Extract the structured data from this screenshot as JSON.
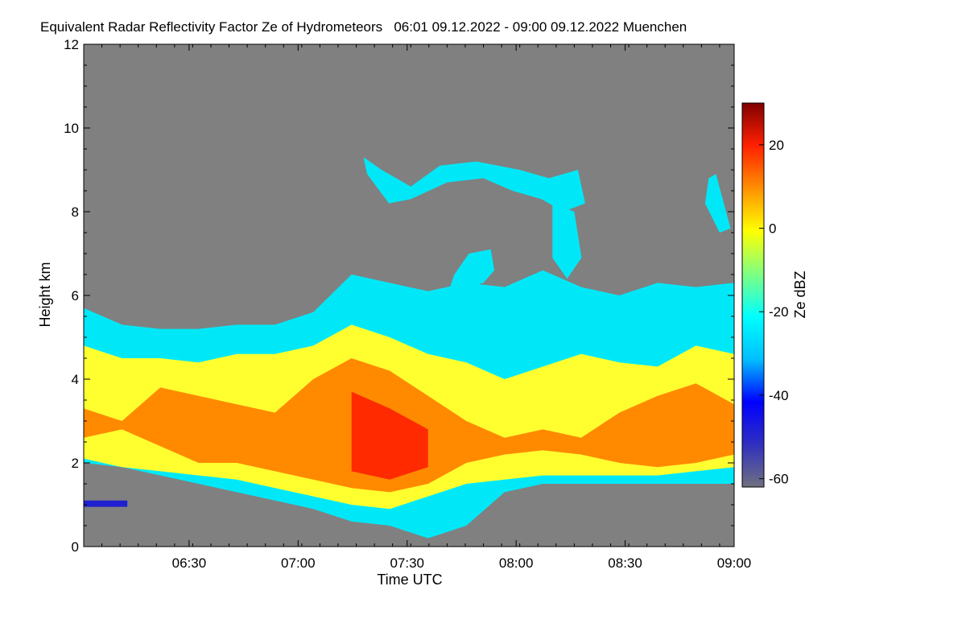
{
  "chart_data": {
    "type": "heatmap",
    "title": "Equivalent Radar Reflectivity Factor Ze of Hydrometeors   06:01 09.12.2022 - 09:00 09.12.2022 Muenchen",
    "xlabel": "Time UTC",
    "ylabel": "Height km",
    "x_ticks": [
      "06:30",
      "07:00",
      "07:30",
      "08:00",
      "08:30",
      "09:00"
    ],
    "y_ticks": [
      "0",
      "2",
      "4",
      "6",
      "8",
      "10",
      "12"
    ],
    "xlim": [
      "06:01",
      "09:00"
    ],
    "ylim": [
      0,
      12
    ],
    "colorbar": {
      "label": "Ze dBZ",
      "range": [
        -62,
        30
      ],
      "ticks": [
        "20",
        "0",
        "-20",
        "-40",
        "-60"
      ],
      "colors": [
        "#707080",
        "#3030c0",
        "#0000ff",
        "#00c0ff",
        "#00ffff",
        "#80ff80",
        "#ffff00",
        "#ff9000",
        "#ff2000",
        "#800000"
      ]
    },
    "background_color": "#808080",
    "bands": [
      {
        "layer": "cloud-outer",
        "color": "#00e8f8",
        "top": [
          5.7,
          5.3,
          5.2,
          5.2,
          5.3,
          5.3,
          5.6,
          6.5,
          6.3,
          6.1,
          6.3,
          6.2,
          6.6,
          6.2,
          6.0,
          6.3,
          6.2,
          6.3
        ],
        "bottom": [
          2.0,
          1.9,
          1.7,
          1.5,
          1.3,
          1.1,
          0.9,
          0.6,
          0.5,
          0.2,
          0.5,
          1.3,
          1.5,
          1.5,
          1.5,
          1.5,
          1.5,
          1.5
        ]
      },
      {
        "layer": "cloud-mid",
        "color": "#ffff30",
        "top": [
          4.8,
          4.5,
          4.5,
          4.4,
          4.6,
          4.6,
          4.8,
          5.3,
          5.0,
          4.6,
          4.4,
          4.0,
          4.3,
          4.6,
          4.4,
          4.3,
          4.8,
          4.6
        ],
        "bottom": [
          2.1,
          1.9,
          1.8,
          1.7,
          1.6,
          1.4,
          1.2,
          1.0,
          0.9,
          1.2,
          1.5,
          1.6,
          1.7,
          1.7,
          1.7,
          1.7,
          1.8,
          1.9
        ]
      },
      {
        "layer": "cloud-core",
        "color": "#ff8a00",
        "top": [
          3.3,
          3.0,
          3.8,
          3.6,
          3.4,
          3.2,
          4.0,
          4.5,
          4.2,
          3.6,
          3.0,
          2.6,
          2.8,
          2.6,
          3.2,
          3.6,
          3.9,
          3.4
        ],
        "bottom": [
          2.6,
          2.8,
          2.4,
          2.0,
          2.0,
          1.8,
          1.6,
          1.4,
          1.3,
          1.5,
          2.0,
          2.2,
          2.3,
          2.2,
          2.0,
          1.9,
          2.0,
          2.2
        ]
      },
      {
        "layer": "cloud-peak",
        "color": "#ff2a00",
        "top": [
          null,
          null,
          null,
          null,
          null,
          null,
          null,
          3.7,
          3.3,
          2.8,
          null,
          null,
          null,
          null,
          null,
          null,
          null,
          null
        ],
        "bottom": [
          null,
          null,
          null,
          null,
          null,
          null,
          null,
          1.8,
          1.6,
          1.9,
          null,
          null,
          null,
          null,
          null,
          null,
          null,
          null
        ]
      }
    ],
    "cells": [
      {
        "name": "cirrus-band",
        "color": "#00e8f8",
        "points": [
          [
            77,
            9.3
          ],
          [
            82,
            9.0
          ],
          [
            90,
            8.6
          ],
          [
            98,
            9.1
          ],
          [
            108,
            9.2
          ],
          [
            114,
            9.1
          ],
          [
            120,
            9.0
          ],
          [
            128,
            8.8
          ],
          [
            136,
            9.0
          ],
          [
            138,
            8.2
          ],
          [
            132,
            8.0
          ],
          [
            126,
            8.3
          ],
          [
            118,
            8.5
          ],
          [
            110,
            8.8
          ],
          [
            100,
            8.7
          ],
          [
            90,
            8.3
          ],
          [
            84,
            8.2
          ],
          [
            78,
            8.9
          ]
        ]
      },
      {
        "name": "fall-streak",
        "color": "#00e8f8",
        "points": [
          [
            129,
            8.2
          ],
          [
            135,
            8.0
          ],
          [
            137,
            6.9
          ],
          [
            133,
            6.4
          ],
          [
            129,
            6.9
          ]
        ]
      },
      {
        "name": "convective-tower",
        "color": "#00e8f8",
        "points": [
          [
            102,
            6.5
          ],
          [
            106,
            7.0
          ],
          [
            112,
            7.1
          ],
          [
            113,
            6.6
          ],
          [
            110,
            6.3
          ],
          [
            106,
            6.2
          ],
          [
            104,
            5.8
          ],
          [
            100,
            6.0
          ]
        ]
      },
      {
        "name": "small-cell",
        "color": "#00e8f8",
        "points": [
          [
            172,
            8.8
          ],
          [
            174,
            8.9
          ],
          [
            178,
            7.6
          ],
          [
            175,
            7.5
          ],
          [
            171,
            8.2
          ]
        ]
      },
      {
        "name": "surface-echo",
        "color": "#2020d0",
        "points": [
          [
            0,
            1.1
          ],
          [
            12,
            1.1
          ],
          [
            12,
            0.95
          ],
          [
            0,
            0.95
          ]
        ]
      }
    ]
  }
}
